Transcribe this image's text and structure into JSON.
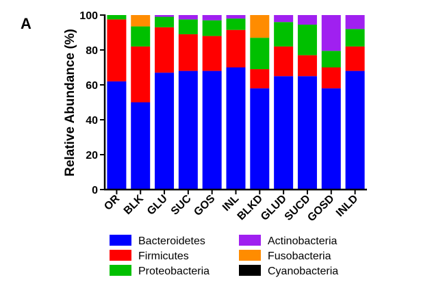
{
  "chart_data": {
    "type": "bar",
    "stacked": true,
    "panel_label": "A",
    "title": "",
    "xlabel": "",
    "ylabel": "Relative Abundance (%)",
    "ylim": [
      0,
      100
    ],
    "yticks": [
      "0",
      "20",
      "40",
      "60",
      "80",
      "100"
    ],
    "categories": [
      "OR",
      "BLK",
      "GLU",
      "SUC",
      "GOS",
      "INL",
      "BLKD",
      "GLUD",
      "SUCD",
      "GOSD",
      "INLD"
    ],
    "series": [
      {
        "name": "Bacteroidetes",
        "color": "#0000ff",
        "values": [
          62,
          50,
          67,
          68,
          68,
          70,
          58,
          65,
          65,
          58,
          68
        ]
      },
      {
        "name": "Firmicutes",
        "color": "#ff0000",
        "values": [
          35.5,
          32,
          26,
          21,
          20,
          21.5,
          11,
          17,
          12,
          12,
          14
        ]
      },
      {
        "name": "Proteobacteria",
        "color": "#00c000",
        "values": [
          2.5,
          11.5,
          6,
          8.5,
          9,
          6.5,
          18,
          14,
          17.5,
          9.5,
          10
        ]
      },
      {
        "name": "Actinobacteria",
        "color": "#a020f0",
        "values": [
          0,
          0,
          1,
          2.5,
          3,
          2,
          0,
          4,
          5.5,
          20.5,
          8
        ]
      },
      {
        "name": "Fusobacteria",
        "color": "#ff8c00",
        "values": [
          0,
          6.5,
          0,
          0,
          0,
          0,
          13,
          0,
          0,
          0,
          0
        ]
      },
      {
        "name": "Cyanobacteria",
        "color": "#000000",
        "values": [
          0,
          0,
          0,
          0,
          0,
          0,
          0,
          0,
          0,
          0,
          0
        ]
      }
    ],
    "legend_position": "bottom",
    "grid": false
  }
}
